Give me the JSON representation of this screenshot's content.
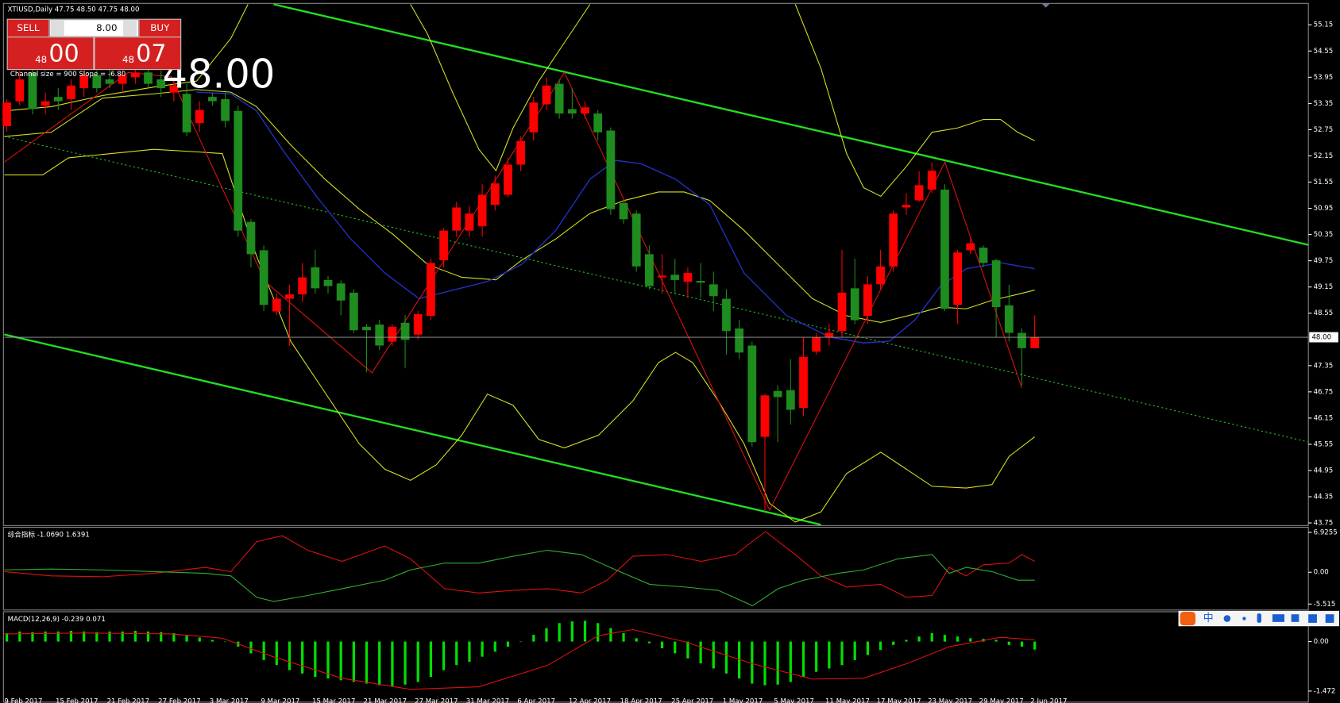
{
  "chart_data": {
    "type": "candlestick",
    "title": "XTIUSD,Daily  47.75 48.50 47.75 48.00",
    "channel_label": "Channel size = 900 Slope = -6.80",
    "up_color": "#ff0000",
    "down_color": "#1e8c1e",
    "ylim": [
      43.71,
      55.62
    ],
    "yticks": [
      55.15,
      54.55,
      53.95,
      53.35,
      52.75,
      52.15,
      51.55,
      50.95,
      50.35,
      49.75,
      49.15,
      48.55,
      47.35,
      46.75,
      46.15,
      45.55,
      44.95,
      44.35,
      43.75
    ],
    "current_price": {
      "value": 48,
      "label": "48.00"
    },
    "candles": [
      [
        52.83,
        53.45,
        52.7,
        53.37
      ],
      [
        53.4,
        54.1,
        53.3,
        53.9
      ],
      [
        54.06,
        54.2,
        53.1,
        53.22
      ],
      [
        53.3,
        53.6,
        53.1,
        53.4
      ],
      [
        53.5,
        53.7,
        53.2,
        53.4
      ],
      [
        53.45,
        53.9,
        53.2,
        53.76
      ],
      [
        53.7,
        54.1,
        53.5,
        54.0
      ],
      [
        54.0,
        54.1,
        53.6,
        53.7
      ],
      [
        53.9,
        54.2,
        53.7,
        53.8
      ],
      [
        53.8,
        54.1,
        53.6,
        54.0
      ],
      [
        53.95,
        54.3,
        53.8,
        54.06
      ],
      [
        54.06,
        54.3,
        53.7,
        53.8
      ],
      [
        53.9,
        54.1,
        53.5,
        53.7
      ],
      [
        53.6,
        53.9,
        53.4,
        53.76
      ],
      [
        53.57,
        53.8,
        52.6,
        52.69
      ],
      [
        52.9,
        53.4,
        52.7,
        53.2
      ],
      [
        53.5,
        53.6,
        53.3,
        53.4
      ],
      [
        53.45,
        53.6,
        52.8,
        52.95
      ],
      [
        53.18,
        53.3,
        50.3,
        50.44
      ],
      [
        50.64,
        50.7,
        49.6,
        49.9
      ],
      [
        49.99,
        50.1,
        48.6,
        48.74
      ],
      [
        48.59,
        49.0,
        48.5,
        48.88
      ],
      [
        48.88,
        49.2,
        47.8,
        48.98
      ],
      [
        48.98,
        49.7,
        48.8,
        49.37
      ],
      [
        49.6,
        50.0,
        49.0,
        49.12
      ],
      [
        49.31,
        49.4,
        49.0,
        49.17
      ],
      [
        49.23,
        49.3,
        48.5,
        48.84
      ],
      [
        49.02,
        49.1,
        48.1,
        48.16
      ],
      [
        48.24,
        48.3,
        47.2,
        48.16
      ],
      [
        48.29,
        48.4,
        47.7,
        47.81
      ],
      [
        47.9,
        48.3,
        47.8,
        48.24
      ],
      [
        48.33,
        48.5,
        47.3,
        47.94
      ],
      [
        48.06,
        48.6,
        47.95,
        48.53
      ],
      [
        48.49,
        49.8,
        48.4,
        49.7
      ],
      [
        49.76,
        50.5,
        49.6,
        50.44
      ],
      [
        50.44,
        51.1,
        50.3,
        50.97
      ],
      [
        50.44,
        51.0,
        50.3,
        50.83
      ],
      [
        50.54,
        51.5,
        50.3,
        51.26
      ],
      [
        51.03,
        51.7,
        50.9,
        51.52
      ],
      [
        51.26,
        52.1,
        51.2,
        51.95
      ],
      [
        51.95,
        52.6,
        51.8,
        52.49
      ],
      [
        52.69,
        53.5,
        52.5,
        53.37
      ],
      [
        53.33,
        53.95,
        53.2,
        53.76
      ],
      [
        53.8,
        53.9,
        53.0,
        53.12
      ],
      [
        53.22,
        53.7,
        53.0,
        53.12
      ],
      [
        53.12,
        53.4,
        53.0,
        53.26
      ],
      [
        53.12,
        53.2,
        52.5,
        52.69
      ],
      [
        52.73,
        52.8,
        50.8,
        50.93
      ],
      [
        51.07,
        51.1,
        50.6,
        50.7
      ],
      [
        50.83,
        50.9,
        49.5,
        49.62
      ],
      [
        49.9,
        50.1,
        49.1,
        49.17
      ],
      [
        49.37,
        49.9,
        49.0,
        49.41
      ],
      [
        49.43,
        49.8,
        49.0,
        49.31
      ],
      [
        49.27,
        49.6,
        48.9,
        49.47
      ],
      [
        49.29,
        49.7,
        48.9,
        49.25
      ],
      [
        49.21,
        49.5,
        48.6,
        48.94
      ],
      [
        48.88,
        49.1,
        47.6,
        48.14
      ],
      [
        48.2,
        48.4,
        47.5,
        47.65
      ],
      [
        47.81,
        47.9,
        45.5,
        45.6
      ],
      [
        45.72,
        46.7,
        44.04,
        46.67
      ],
      [
        46.77,
        46.9,
        45.6,
        46.63
      ],
      [
        46.79,
        47.5,
        46.0,
        46.34
      ],
      [
        46.38,
        48.0,
        46.2,
        47.55
      ],
      [
        47.67,
        48.1,
        47.6,
        48.0
      ],
      [
        48.0,
        48.3,
        47.8,
        48.1
      ],
      [
        48.14,
        50.0,
        48.0,
        49.02
      ],
      [
        49.12,
        49.8,
        48.3,
        48.39
      ],
      [
        48.49,
        49.4,
        48.3,
        49.21
      ],
      [
        49.21,
        50.0,
        49.1,
        49.62
      ],
      [
        49.62,
        50.9,
        49.5,
        50.83
      ],
      [
        50.97,
        51.3,
        50.8,
        51.03
      ],
      [
        51.13,
        51.8,
        51.1,
        51.48
      ],
      [
        51.38,
        52.0,
        51.3,
        51.81
      ],
      [
        51.38,
        51.5,
        48.6,
        48.65
      ],
      [
        48.74,
        50.0,
        48.3,
        49.94
      ],
      [
        49.99,
        50.3,
        49.9,
        50.15
      ],
      [
        50.05,
        50.1,
        49.6,
        49.7
      ],
      [
        49.76,
        49.8,
        48.0,
        48.69
      ],
      [
        48.73,
        49.2,
        47.9,
        48.1
      ],
      [
        48.1,
        48.2,
        46.9,
        47.75
      ],
      [
        47.75,
        48.5,
        47.75,
        48.0
      ]
    ],
    "date_labels": [
      "9 Feb 2017",
      "15 Feb 2017",
      "21 Feb 2017",
      "27 Feb 2017",
      "3 Mar 2017",
      "9 Mar 2017",
      "15 Mar 2017",
      "21 Mar 2017",
      "27 Mar 2017",
      "31 Mar 2017",
      "6 Apr 2017",
      "12 Apr 2017",
      "18 Apr 2017",
      "25 Apr 2017",
      "1 May 2017",
      "5 May 2017",
      "11 May 2017",
      "17 May 2017",
      "23 May 2017",
      "29 May 2017",
      "2 Jun 2017"
    ],
    "indicator": {
      "label": "综合指标 -1.0690 1.6391",
      "ylim": [
        -6.55,
        7.67
      ],
      "yticks": [
        6.9255,
        {
          "value": 0,
          "label": "0.00"
        },
        -5.515
      ]
    },
    "macd": {
      "label": "MACD(12,26,9) -0.239 0.071",
      "color": "#00e000",
      "ylim": [
        -1.726,
        0.863
      ],
      "yticks": [
        {
          "value": 0,
          "label": "0.00"
        },
        -1.472
      ],
      "values": [
        0.25,
        0.3,
        0.28,
        0.3,
        0.3,
        0.32,
        0.3,
        0.28,
        0.3,
        0.3,
        0.32,
        0.3,
        0.28,
        0.25,
        0.2,
        0.12,
        0.05,
        0.0,
        -0.15,
        -0.35,
        -0.55,
        -0.7,
        -0.85,
        -0.95,
        -1.05,
        -1.1,
        -1.15,
        -1.2,
        -1.25,
        -1.3,
        -1.32,
        -1.28,
        -1.2,
        -1.05,
        -0.85,
        -0.7,
        -0.6,
        -0.45,
        -0.3,
        -0.15,
        0.0,
        0.2,
        0.4,
        0.55,
        0.6,
        0.62,
        0.55,
        0.4,
        0.25,
        0.1,
        -0.05,
        -0.2,
        -0.35,
        -0.5,
        -0.65,
        -0.8,
        -0.95,
        -1.1,
        -1.25,
        -1.3,
        -1.28,
        -1.2,
        -1.05,
        -0.9,
        -0.8,
        -0.7,
        -0.55,
        -0.4,
        -0.25,
        -0.1,
        0.05,
        0.15,
        0.25,
        0.2,
        0.15,
        0.1,
        0.08,
        0.05,
        -0.1,
        -0.15,
        -0.239
      ]
    }
  },
  "trade_panel": {
    "sell": "SELL",
    "buy": "BUY",
    "lots": "8.00",
    "bid_big": "48",
    "bid_small": "00",
    "ask_big": "48",
    "ask_small": "07",
    "price": "48.00"
  },
  "toolbar": {
    "ime": "中"
  }
}
